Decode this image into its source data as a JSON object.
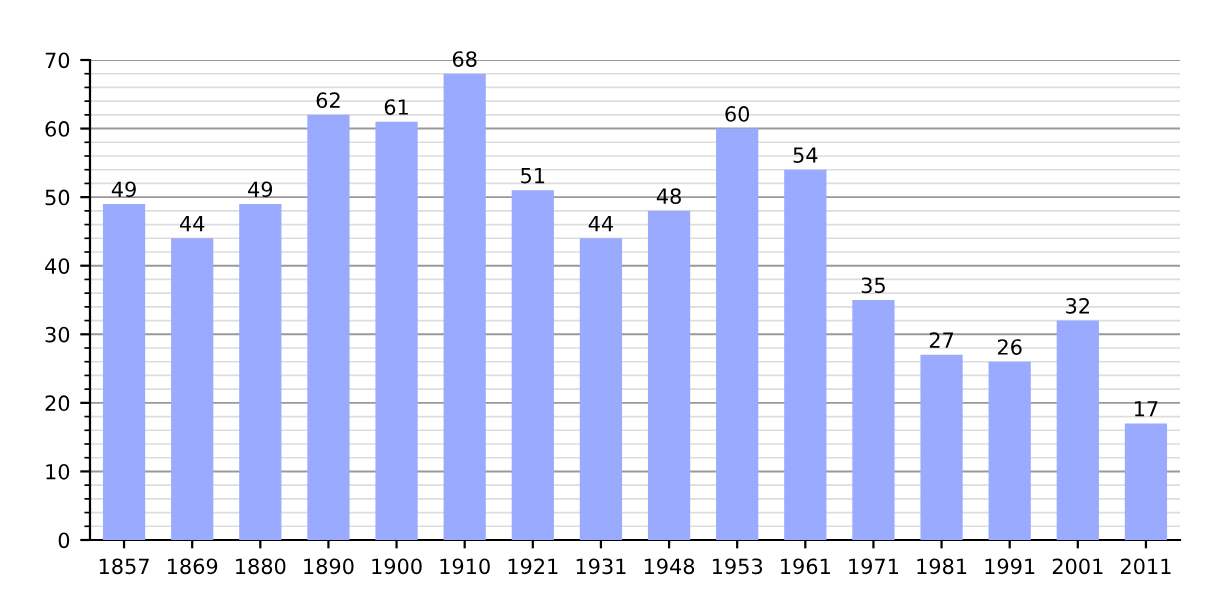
{
  "chart_data": {
    "type": "bar",
    "categories": [
      "1857",
      "1869",
      "1880",
      "1890",
      "1900",
      "1910",
      "1921",
      "1931",
      "1948",
      "1953",
      "1961",
      "1971",
      "1981",
      "1991",
      "2001",
      "2011"
    ],
    "values": [
      49,
      44,
      49,
      62,
      61,
      68,
      51,
      44,
      48,
      60,
      54,
      35,
      27,
      26,
      32,
      17
    ],
    "color": "#99aaff",
    "ylim": [
      0,
      70
    ],
    "yticks": [
      0,
      10,
      20,
      30,
      40,
      50,
      60,
      70
    ],
    "grid": "y",
    "data_labels": true
  }
}
